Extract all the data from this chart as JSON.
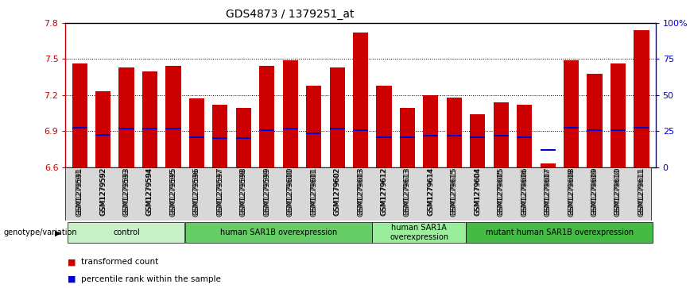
{
  "title": "GDS4873 / 1379251_at",
  "samples": [
    "GSM1279591",
    "GSM1279592",
    "GSM1279593",
    "GSM1279594",
    "GSM1279595",
    "GSM1279596",
    "GSM1279597",
    "GSM1279598",
    "GSM1279599",
    "GSM1279600",
    "GSM1279601",
    "GSM1279602",
    "GSM1279603",
    "GSM1279612",
    "GSM1279613",
    "GSM1279614",
    "GSM1279615",
    "GSM1279604",
    "GSM1279605",
    "GSM1279606",
    "GSM1279607",
    "GSM1279608",
    "GSM1279609",
    "GSM1279610",
    "GSM1279611"
  ],
  "bar_values": [
    7.46,
    7.23,
    7.43,
    7.4,
    7.44,
    7.17,
    7.12,
    7.09,
    7.44,
    7.49,
    7.28,
    7.43,
    7.72,
    7.28,
    7.09,
    7.2,
    7.18,
    7.04,
    7.14,
    7.12,
    6.63,
    7.49,
    7.38,
    7.46,
    7.74
  ],
  "percentile_values": [
    6.93,
    6.87,
    6.92,
    6.92,
    6.92,
    6.85,
    6.84,
    6.84,
    6.91,
    6.92,
    6.88,
    6.92,
    6.91,
    6.85,
    6.85,
    6.86,
    6.86,
    6.85,
    6.86,
    6.85,
    6.74,
    6.93,
    6.91,
    6.91,
    6.93
  ],
  "groups": [
    {
      "label": "control",
      "start": 0,
      "end": 4,
      "color": "#c8f0c8"
    },
    {
      "label": "human SAR1B overexpression",
      "start": 5,
      "end": 12,
      "color": "#66cc66"
    },
    {
      "label": "human SAR1A\noverexpression",
      "start": 13,
      "end": 16,
      "color": "#99ee99"
    },
    {
      "label": "mutant human SAR1B overexpression",
      "start": 17,
      "end": 24,
      "color": "#44bb44"
    }
  ],
  "bar_color": "#cc0000",
  "percentile_color": "#0000cc",
  "base_value": 6.6,
  "ylim_left": [
    6.6,
    7.8
  ],
  "ylim_right": [
    0,
    100
  ],
  "yticks_left": [
    6.6,
    6.9,
    7.2,
    7.5,
    7.8
  ],
  "yticks_right": [
    0,
    25,
    50,
    75,
    100
  ],
  "yticklabels_right": [
    "0",
    "25",
    "50",
    "75",
    "100%"
  ],
  "dotted_lines": [
    6.9,
    7.2,
    7.5
  ],
  "bar_width": 0.65,
  "left_axis_color": "#cc0000",
  "right_axis_color": "#0000cc"
}
